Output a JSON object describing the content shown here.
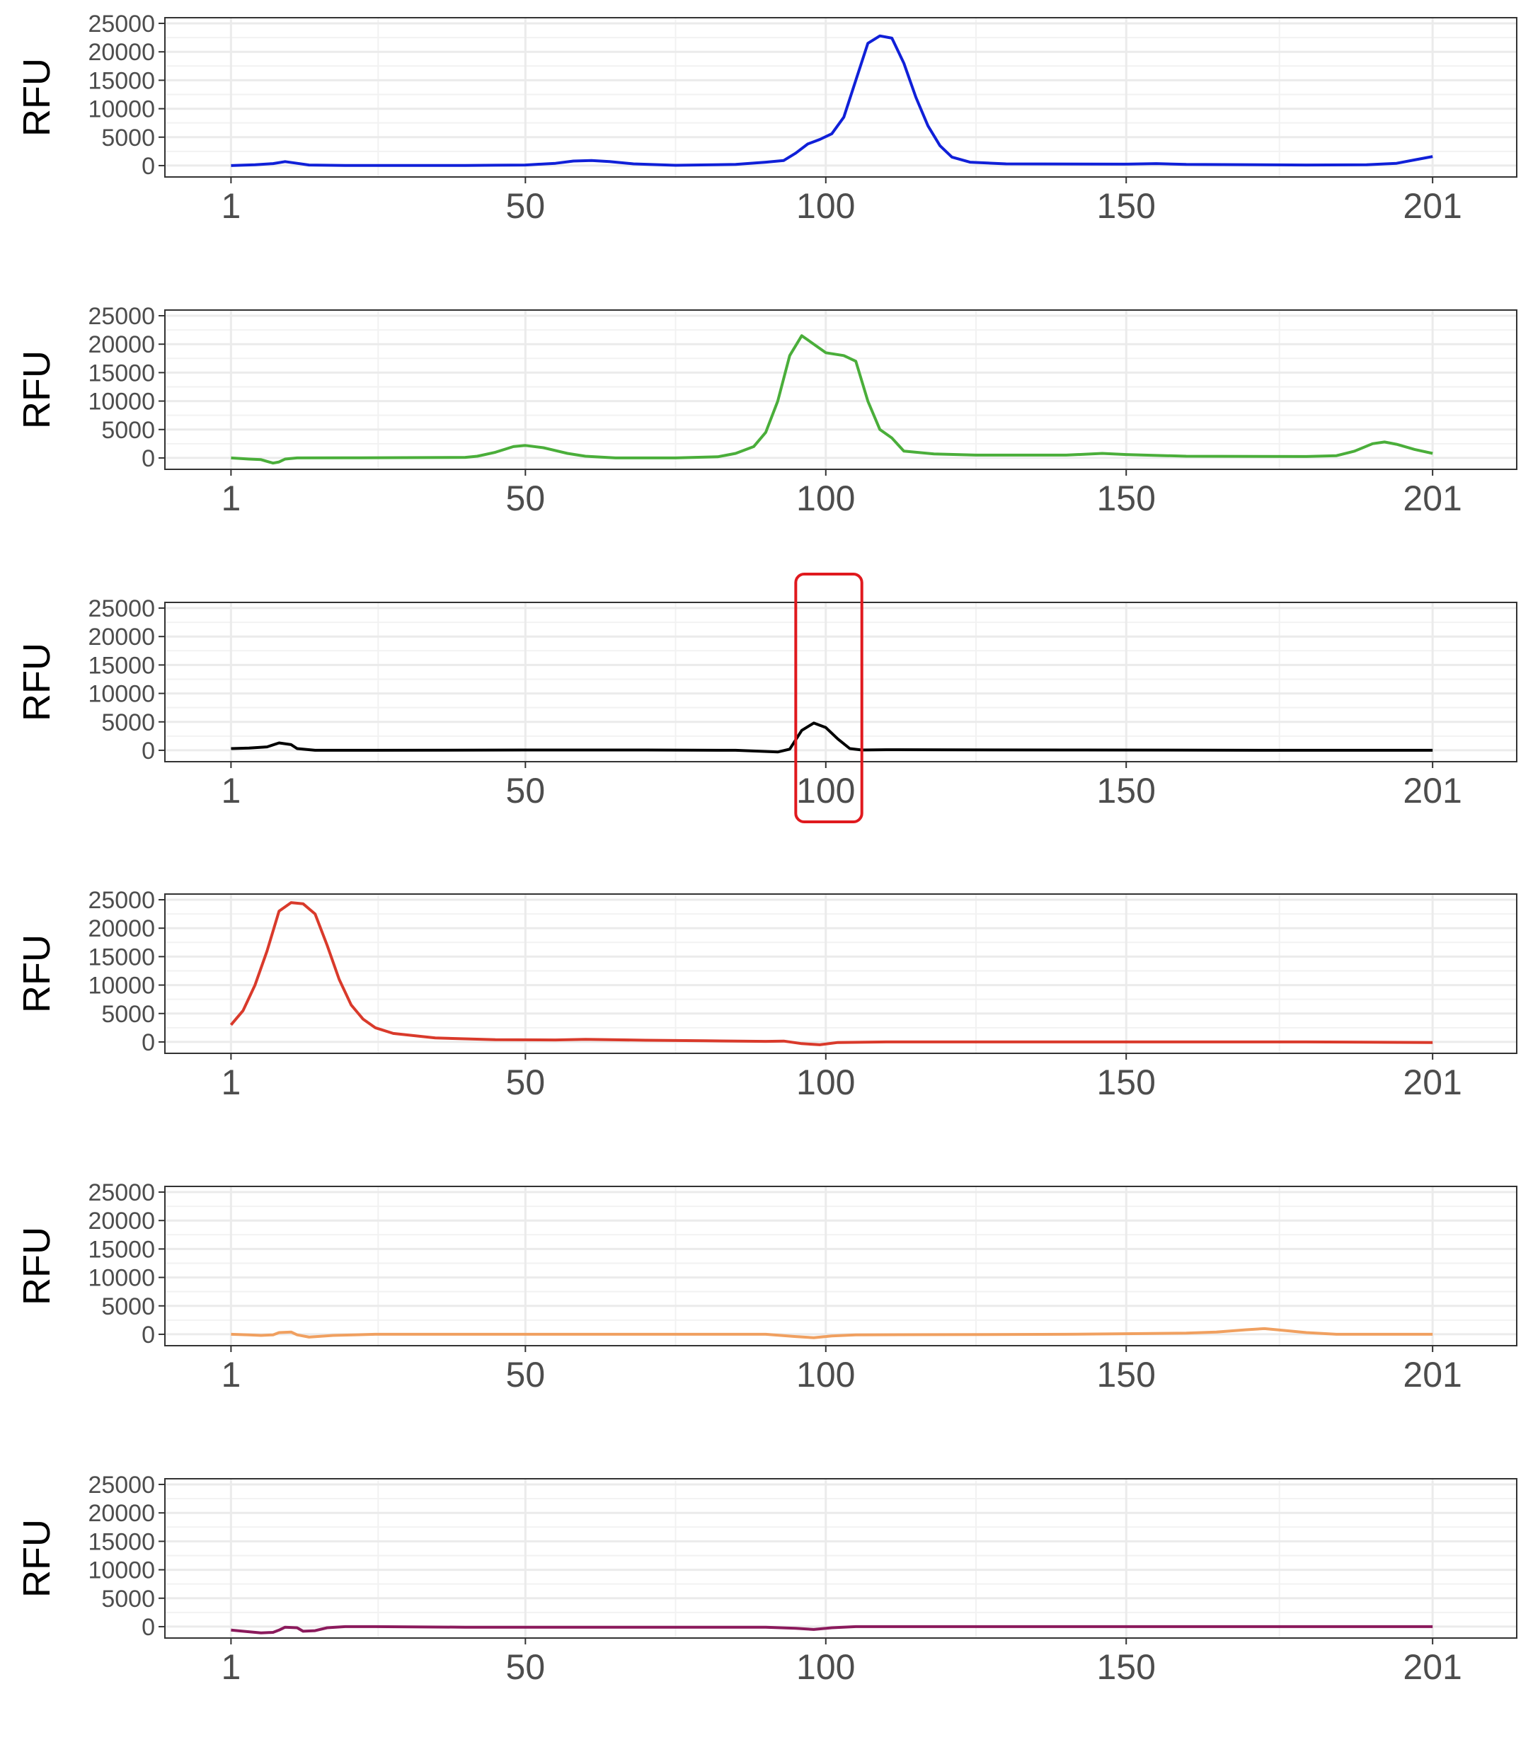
{
  "chart_data": [
    {
      "type": "line",
      "ylabel": "RFU",
      "color": "#1020d8",
      "xlim": [
        -10,
        215
      ],
      "ylim": [
        -2000,
        26000
      ],
      "x_ticks": [
        1,
        50,
        100,
        150,
        201
      ],
      "y_ticks": [
        0,
        5000,
        10000,
        15000,
        20000,
        25000
      ],
      "grid": true,
      "highlight": null,
      "series": [
        {
          "points": [
            [
              1,
              0
            ],
            [
              5,
              150
            ],
            [
              8,
              350
            ],
            [
              10,
              700
            ],
            [
              12,
              400
            ],
            [
              14,
              100
            ],
            [
              20,
              30
            ],
            [
              40,
              20
            ],
            [
              45,
              60
            ],
            [
              50,
              100
            ],
            [
              55,
              400
            ],
            [
              58,
              800
            ],
            [
              61,
              900
            ],
            [
              64,
              700
            ],
            [
              68,
              300
            ],
            [
              75,
              50
            ],
            [
              85,
              200
            ],
            [
              90,
              600
            ],
            [
              93,
              900
            ],
            [
              95,
              2200
            ],
            [
              97,
              3800
            ],
            [
              99,
              4600
            ],
            [
              101,
              5600
            ],
            [
              103,
              8500
            ],
            [
              105,
              15000
            ],
            [
              107,
              21500
            ],
            [
              109,
              22800
            ],
            [
              111,
              22400
            ],
            [
              113,
              18000
            ],
            [
              115,
              12000
            ],
            [
              117,
              7000
            ],
            [
              119,
              3500
            ],
            [
              121,
              1500
            ],
            [
              124,
              600
            ],
            [
              130,
              300
            ],
            [
              150,
              250
            ],
            [
              155,
              350
            ],
            [
              160,
              200
            ],
            [
              180,
              100
            ],
            [
              190,
              150
            ],
            [
              195,
              400
            ],
            [
              198,
              1000
            ],
            [
              201,
              1600
            ]
          ]
        }
      ]
    },
    {
      "type": "line",
      "ylabel": "RFU",
      "color": "#4aae3a",
      "xlim": [
        -10,
        215
      ],
      "ylim": [
        -2000,
        26000
      ],
      "x_ticks": [
        1,
        50,
        100,
        150,
        201
      ],
      "y_ticks": [
        0,
        5000,
        10000,
        15000,
        20000,
        25000
      ],
      "grid": true,
      "highlight": null,
      "series": [
        {
          "points": [
            [
              1,
              0
            ],
            [
              4,
              -200
            ],
            [
              6,
              -300
            ],
            [
              7,
              -600
            ],
            [
              8,
              -900
            ],
            [
              9,
              -700
            ],
            [
              10,
              -200
            ],
            [
              12,
              0
            ],
            [
              20,
              10
            ],
            [
              40,
              100
            ],
            [
              42,
              300
            ],
            [
              45,
              1000
            ],
            [
              48,
              2000
            ],
            [
              50,
              2200
            ],
            [
              53,
              1800
            ],
            [
              57,
              800
            ],
            [
              60,
              300
            ],
            [
              65,
              0
            ],
            [
              75,
              0
            ],
            [
              82,
              200
            ],
            [
              85,
              800
            ],
            [
              88,
              2000
            ],
            [
              90,
              4500
            ],
            [
              92,
              10000
            ],
            [
              94,
              18000
            ],
            [
              96,
              21500
            ],
            [
              98,
              20000
            ],
            [
              100,
              18500
            ],
            [
              103,
              18000
            ],
            [
              105,
              17000
            ],
            [
              107,
              10000
            ],
            [
              109,
              5000
            ],
            [
              111,
              3500
            ],
            [
              113,
              1200
            ],
            [
              118,
              700
            ],
            [
              125,
              500
            ],
            [
              140,
              500
            ],
            [
              146,
              800
            ],
            [
              150,
              600
            ],
            [
              160,
              300
            ],
            [
              180,
              250
            ],
            [
              185,
              400
            ],
            [
              188,
              1200
            ],
            [
              191,
              2500
            ],
            [
              193,
              2800
            ],
            [
              195,
              2400
            ],
            [
              198,
              1500
            ],
            [
              201,
              800
            ]
          ]
        }
      ]
    },
    {
      "type": "line",
      "ylabel": "RFU",
      "color": "#000000",
      "xlim": [
        -10,
        215
      ],
      "ylim": [
        -2000,
        26000
      ],
      "x_ticks": [
        1,
        50,
        100,
        150,
        201
      ],
      "y_ticks": [
        0,
        5000,
        10000,
        15000,
        20000,
        25000
      ],
      "grid": true,
      "highlight": {
        "x_from": 95,
        "x_to": 106
      },
      "series": [
        {
          "points": [
            [
              1,
              300
            ],
            [
              4,
              400
            ],
            [
              7,
              600
            ],
            [
              9,
              1300
            ],
            [
              11,
              1000
            ],
            [
              12,
              300
            ],
            [
              15,
              0
            ],
            [
              25,
              0
            ],
            [
              50,
              50
            ],
            [
              70,
              50
            ],
            [
              85,
              0
            ],
            [
              92,
              -300
            ],
            [
              94,
              200
            ],
            [
              96,
              3500
            ],
            [
              98,
              4800
            ],
            [
              100,
              4000
            ],
            [
              102,
              2000
            ],
            [
              104,
              300
            ],
            [
              106,
              50
            ],
            [
              110,
              100
            ],
            [
              140,
              50
            ],
            [
              180,
              0
            ],
            [
              201,
              0
            ]
          ]
        }
      ]
    },
    {
      "type": "line",
      "ylabel": "RFU",
      "color": "#d93a2b",
      "xlim": [
        -10,
        215
      ],
      "ylim": [
        -2000,
        26000
      ],
      "x_ticks": [
        1,
        50,
        100,
        150,
        201
      ],
      "y_ticks": [
        0,
        5000,
        10000,
        15000,
        20000,
        25000
      ],
      "grid": true,
      "highlight": null,
      "series": [
        {
          "points": [
            [
              1,
              3000
            ],
            [
              3,
              5500
            ],
            [
              5,
              10000
            ],
            [
              7,
              16000
            ],
            [
              9,
              23000
            ],
            [
              11,
              24500
            ],
            [
              13,
              24300
            ],
            [
              15,
              22500
            ],
            [
              17,
              17000
            ],
            [
              19,
              11000
            ],
            [
              21,
              6500
            ],
            [
              23,
              4000
            ],
            [
              25,
              2500
            ],
            [
              28,
              1500
            ],
            [
              35,
              700
            ],
            [
              45,
              400
            ],
            [
              55,
              350
            ],
            [
              60,
              450
            ],
            [
              70,
              300
            ],
            [
              80,
              200
            ],
            [
              90,
              100
            ],
            [
              93,
              150
            ],
            [
              96,
              -300
            ],
            [
              99,
              -500
            ],
            [
              102,
              -100
            ],
            [
              110,
              0
            ],
            [
              150,
              0
            ],
            [
              180,
              0
            ],
            [
              201,
              -100
            ]
          ]
        }
      ]
    },
    {
      "type": "line",
      "ylabel": "RFU",
      "color": "#f0a060",
      "xlim": [
        -10,
        215
      ],
      "ylim": [
        -2000,
        26000
      ],
      "x_ticks": [
        1,
        50,
        100,
        150,
        201
      ],
      "y_ticks": [
        0,
        5000,
        10000,
        15000,
        20000,
        25000
      ],
      "grid": true,
      "highlight": null,
      "series": [
        {
          "points": [
            [
              1,
              0
            ],
            [
              4,
              -100
            ],
            [
              6,
              -200
            ],
            [
              8,
              -100
            ],
            [
              9,
              300
            ],
            [
              11,
              400
            ],
            [
              12,
              -100
            ],
            [
              14,
              -500
            ],
            [
              18,
              -200
            ],
            [
              25,
              0
            ],
            [
              50,
              0
            ],
            [
              90,
              0
            ],
            [
              95,
              -400
            ],
            [
              98,
              -600
            ],
            [
              101,
              -300
            ],
            [
              105,
              -100
            ],
            [
              140,
              0
            ],
            [
              160,
              200
            ],
            [
              165,
              400
            ],
            [
              170,
              800
            ],
            [
              173,
              1000
            ],
            [
              176,
              700
            ],
            [
              180,
              300
            ],
            [
              185,
              0
            ],
            [
              201,
              0
            ]
          ]
        }
      ]
    },
    {
      "type": "line",
      "ylabel": "RFU",
      "color": "#8b1a5c",
      "xlim": [
        -10,
        215
      ],
      "ylim": [
        -2000,
        26000
      ],
      "x_ticks": [
        1,
        50,
        100,
        150,
        201
      ],
      "y_ticks": [
        0,
        5000,
        10000,
        15000,
        20000,
        25000
      ],
      "grid": true,
      "highlight": null,
      "series": [
        {
          "points": [
            [
              1,
              -600
            ],
            [
              3,
              -800
            ],
            [
              6,
              -1100
            ],
            [
              8,
              -1000
            ],
            [
              9,
              -600
            ],
            [
              10,
              -100
            ],
            [
              12,
              -200
            ],
            [
              13,
              -800
            ],
            [
              15,
              -700
            ],
            [
              17,
              -200
            ],
            [
              20,
              0
            ],
            [
              25,
              0
            ],
            [
              40,
              -100
            ],
            [
              50,
              -100
            ],
            [
              70,
              -100
            ],
            [
              90,
              -100
            ],
            [
              95,
              -300
            ],
            [
              98,
              -500
            ],
            [
              101,
              -200
            ],
            [
              105,
              0
            ],
            [
              150,
              0
            ],
            [
              201,
              0
            ]
          ]
        }
      ]
    }
  ]
}
